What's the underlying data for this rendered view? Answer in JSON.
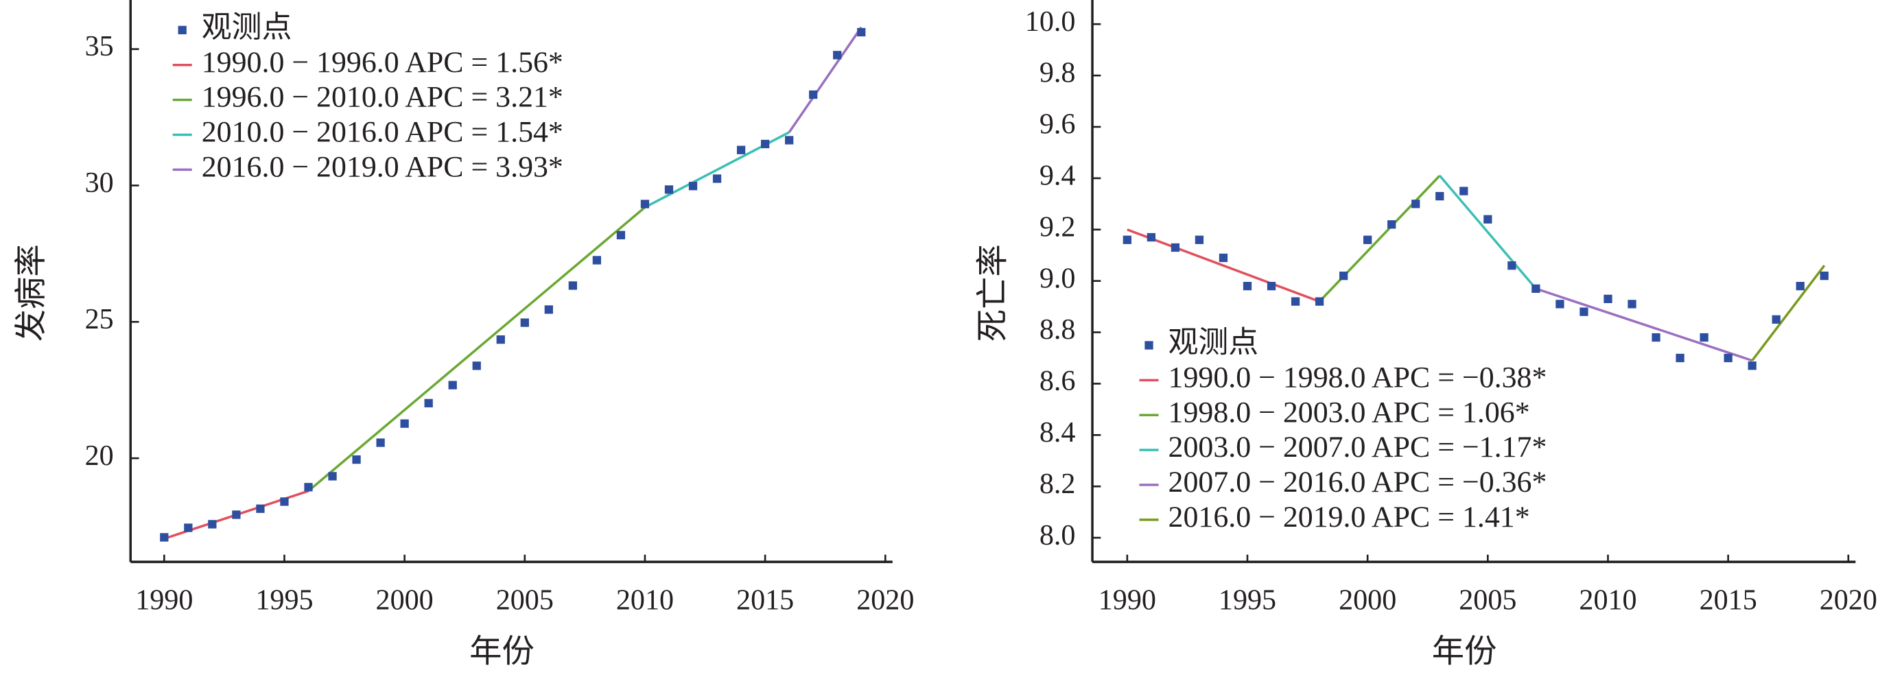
{
  "chart_data": [
    {
      "type": "line",
      "x_label": "年份",
      "y_label": "发病率",
      "xlim": [
        1988.6,
        2020.3
      ],
      "ylim": [
        16.2,
        36.8
      ],
      "xticks": [
        1990,
        1995,
        2000,
        2005,
        2010,
        2015,
        2020
      ],
      "yticks": [
        20,
        25,
        30,
        35
      ],
      "legend": "upper left",
      "observed": {
        "name": "观测点",
        "color": "#2e4fa0",
        "x": [
          1990,
          1991,
          1992,
          1993,
          1994,
          1995,
          1996,
          1997,
          1998,
          1999,
          2000,
          2001,
          2002,
          2003,
          2004,
          2005,
          2006,
          2007,
          2008,
          2009,
          2010,
          2011,
          2012,
          2013,
          2014,
          2015,
          2016,
          2017,
          2018,
          2019
        ],
        "values": [
          17.1,
          17.45,
          17.58,
          17.93,
          18.15,
          18.41,
          18.94,
          19.34,
          19.95,
          20.57,
          21.27,
          22.02,
          22.68,
          23.39,
          24.35,
          24.97,
          25.45,
          26.33,
          27.26,
          28.18,
          29.32,
          29.85,
          29.98,
          30.25,
          31.3,
          31.52,
          31.66,
          33.33,
          34.78,
          35.62
        ]
      },
      "series": [
        {
          "name": "1990.0 − 1996.0 APC = 1.56*",
          "color": "#e0505e",
          "x": [
            1990,
            1996
          ],
          "values": [
            17.05,
            18.8
          ]
        },
        {
          "name": "1996.0 − 2010.0 APC = 3.21*",
          "color": "#6aa832",
          "x": [
            1996,
            2010
          ],
          "values": [
            18.8,
            29.2
          ]
        },
        {
          "name": "2010.0 − 2016.0 APC = 1.54*",
          "color": "#3bbfb5",
          "x": [
            2010,
            2016
          ],
          "values": [
            29.2,
            31.95
          ]
        },
        {
          "name": "2016.0 − 2019.0 APC = 3.93*",
          "color": "#9b6fc0",
          "x": [
            2016,
            2019
          ],
          "values": [
            31.95,
            35.8
          ]
        }
      ]
    },
    {
      "type": "line",
      "x_label": "年份",
      "y_label": "死亡率",
      "xlim": [
        1988.55,
        2020.3
      ],
      "ylim": [
        7.906,
        10.094
      ],
      "xticks": [
        1990,
        1995,
        2000,
        2005,
        2010,
        2015,
        2020
      ],
      "yticks": [
        {
          "value": 8,
          "label": "8.0"
        },
        8.2,
        8.4,
        8.6,
        8.8,
        {
          "value": 9,
          "label": "9.0"
        },
        9.2,
        9.4,
        9.6,
        9.8,
        {
          "value": 10,
          "label": "10.0"
        }
      ],
      "legend": "lower left",
      "observed": {
        "name": "观测点",
        "color": "#2e4fa0",
        "x": [
          1990,
          1991,
          1992,
          1993,
          1994,
          1995,
          1996,
          1997,
          1998,
          1999,
          2000,
          2001,
          2002,
          2003,
          2004,
          2005,
          2006,
          2007,
          2008,
          2009,
          2010,
          2011,
          2012,
          2013,
          2014,
          2015,
          2016,
          2017,
          2018,
          2019
        ],
        "values": [
          9.16,
          9.17,
          9.13,
          9.16,
          9.09,
          8.98,
          8.98,
          8.92,
          8.92,
          9.02,
          9.16,
          9.22,
          9.3,
          9.33,
          9.35,
          9.24,
          9.06,
          8.97,
          8.91,
          8.88,
          8.93,
          8.91,
          8.78,
          8.7,
          8.78,
          8.7,
          8.67,
          8.85,
          8.98,
          9.02
        ]
      },
      "series": [
        {
          "name": "1990.0 − 1998.0 APC = −0.38*",
          "color": "#e0505e",
          "x": [
            1990,
            1998
          ],
          "values": [
            9.2,
            8.92
          ]
        },
        {
          "name": "1998.0 − 2003.0 APC = 1.06*",
          "color": "#6aa832",
          "x": [
            1998,
            2003
          ],
          "values": [
            8.92,
            9.41
          ]
        },
        {
          "name": "2003.0 − 2007.0 APC = −1.17*",
          "color": "#3bbfb5",
          "x": [
            2003,
            2007
          ],
          "values": [
            9.41,
            8.97
          ]
        },
        {
          "name": "2007.0 − 2016.0 APC = −0.36*",
          "color": "#9b6fc0",
          "x": [
            2007,
            2016
          ],
          "values": [
            8.97,
            8.69
          ]
        },
        {
          "name": "2016.0 − 2019.0 APC = 1.41*",
          "color": "#7a9a1e",
          "x": [
            2016,
            2019
          ],
          "values": [
            8.69,
            9.06
          ]
        }
      ]
    }
  ]
}
